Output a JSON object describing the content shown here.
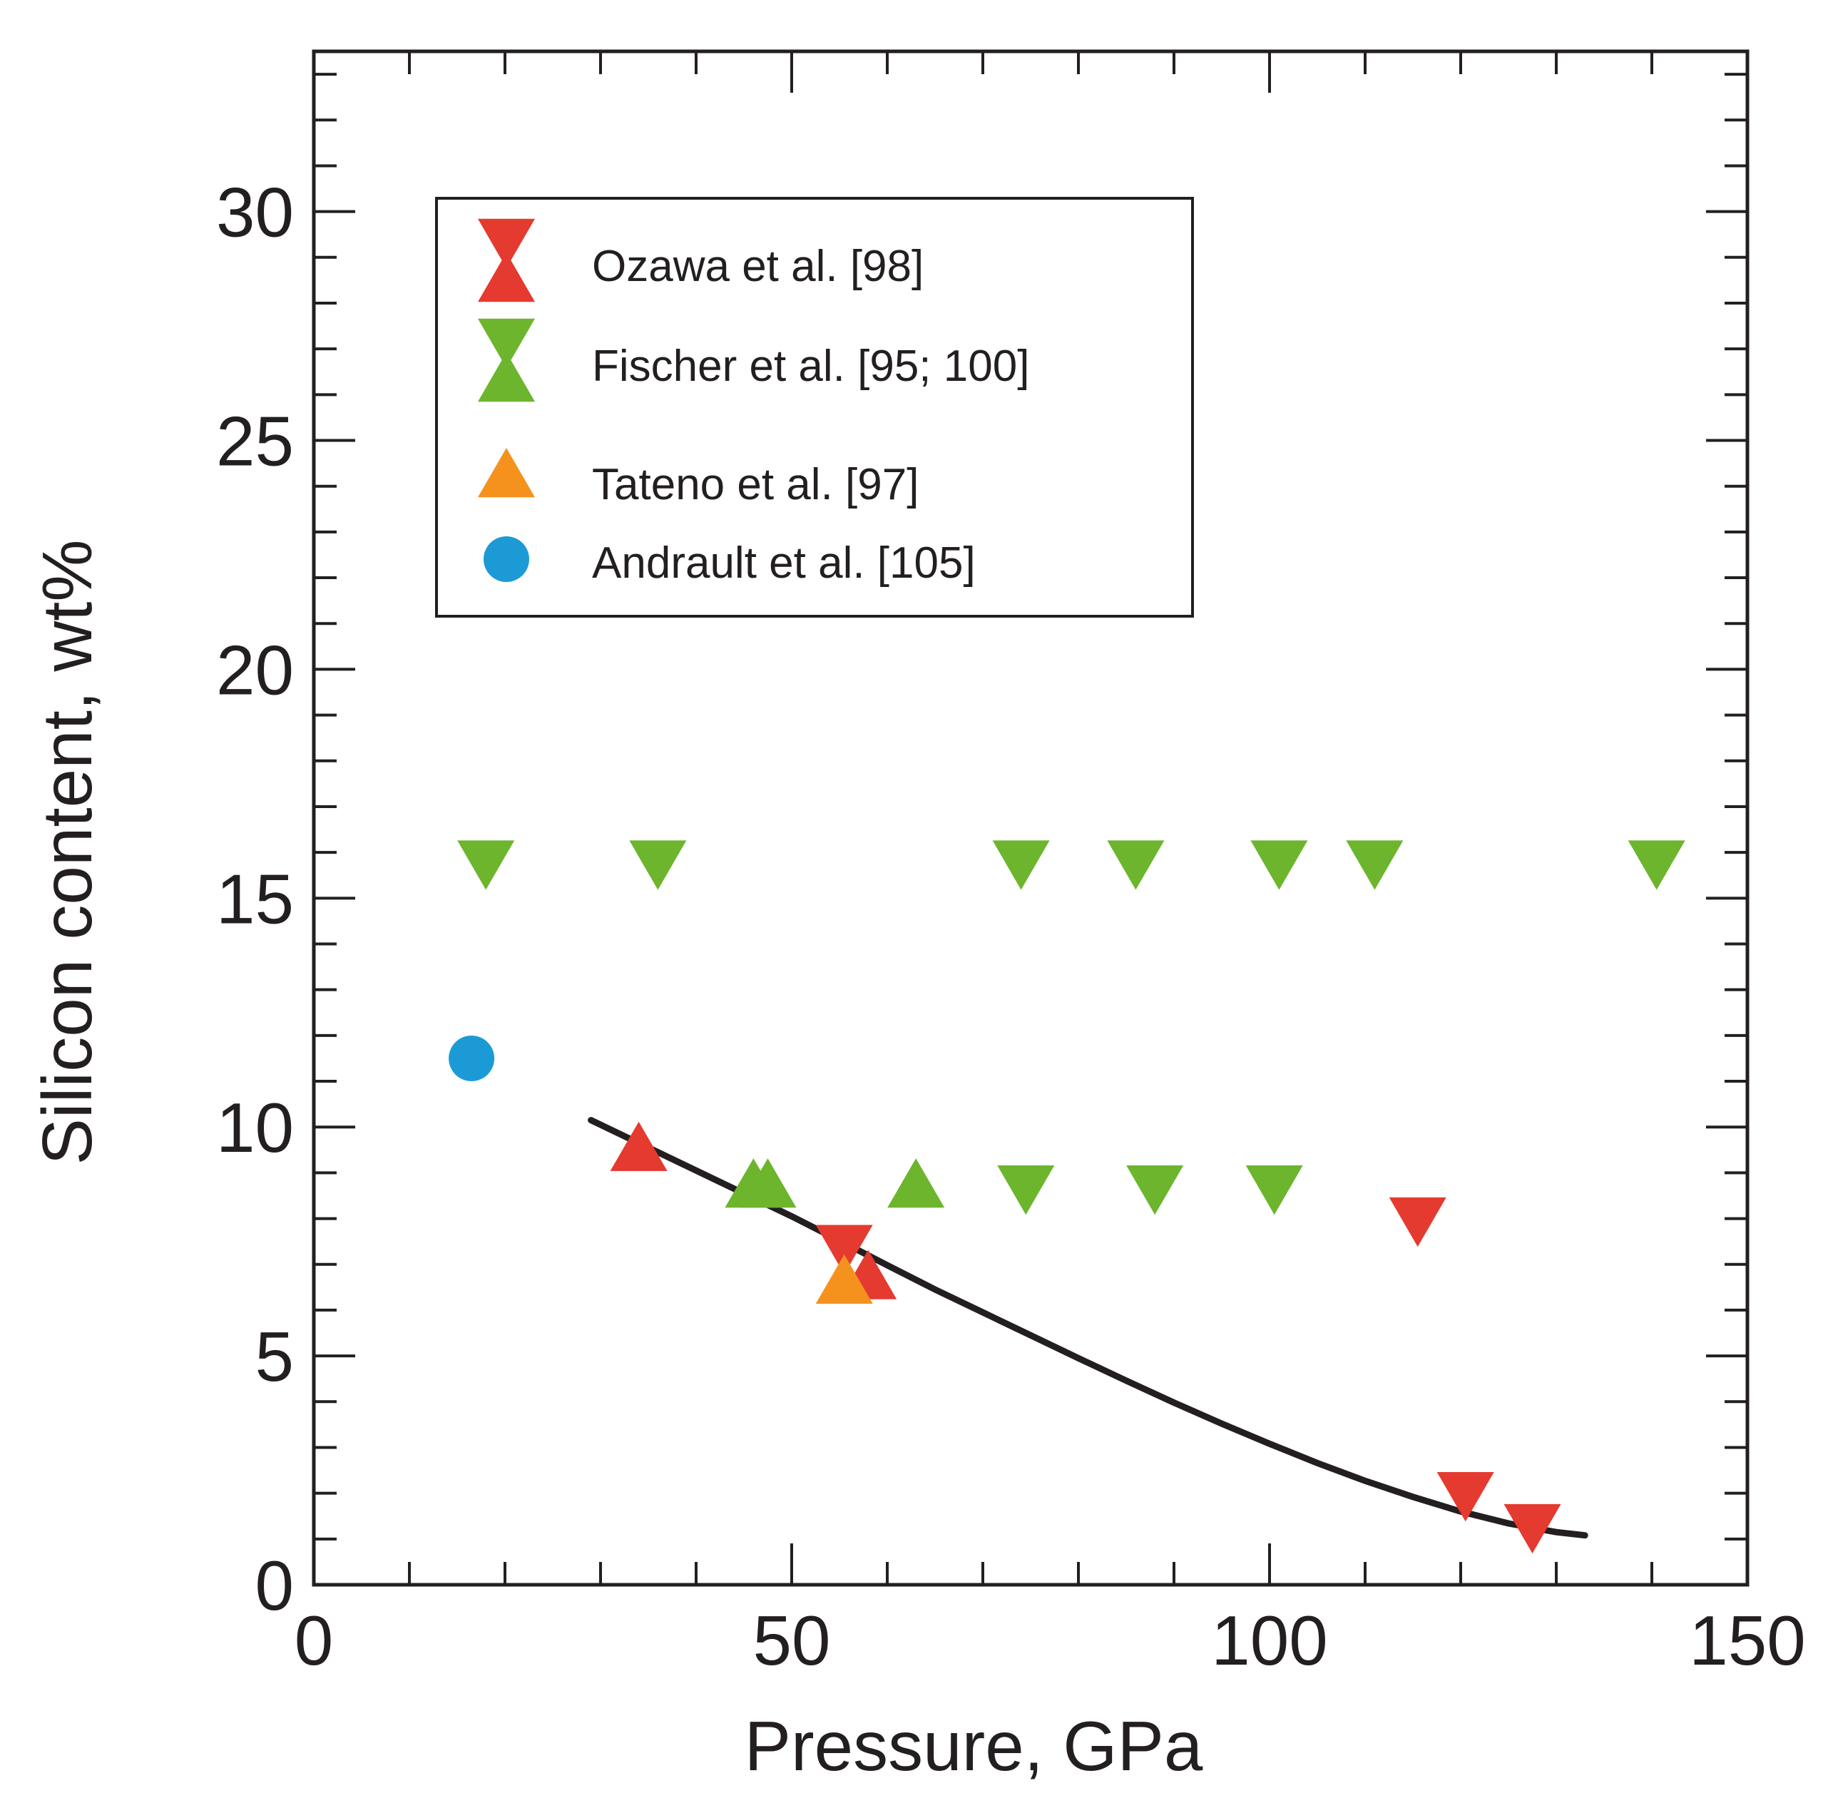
{
  "chart_data": {
    "type": "scatter",
    "title": "",
    "xlabel": "Pressure, GPa",
    "ylabel": "Silicon content, wt%",
    "xlim": [
      0,
      150
    ],
    "ylim": [
      0,
      33.5
    ],
    "xticks": [
      0,
      50,
      100,
      150
    ],
    "yticks": [
      0,
      5,
      10,
      15,
      20,
      25,
      30
    ],
    "x_minor_step": 10,
    "y_minor_step": 1,
    "grid": false,
    "legend_position": "top-left",
    "legend": [
      {
        "label": "Ozawa et al. [98]",
        "markers": [
          "triangle-down",
          "triangle-up"
        ],
        "color": "#e53a2f"
      },
      {
        "label": "Fischer et al. [95; 100]",
        "markers": [
          "triangle-down",
          "triangle-up"
        ],
        "color": "#6cb52d"
      },
      {
        "label": "Tateno et al. [97]",
        "markers": [
          "triangle-up"
        ],
        "color": "#f5921e"
      },
      {
        "label": "Andrault et al. [105]",
        "markers": [
          "circle"
        ],
        "color": "#1c9ad6"
      }
    ],
    "series": [
      {
        "name": "Ozawa et al. [98] (down)",
        "marker": "triangle-down",
        "color": "#e53a2f",
        "points": [
          [
            55.5,
            7.5
          ],
          [
            115.5,
            8.1
          ],
          [
            120.5,
            2.1
          ],
          [
            127.5,
            1.4
          ]
        ]
      },
      {
        "name": "Ozawa et al. [98] (up)",
        "marker": "triangle-up",
        "color": "#e53a2f",
        "points": [
          [
            34,
            9.4
          ],
          [
            58,
            6.6
          ]
        ]
      },
      {
        "name": "Fischer et al. [95; 100] (down)",
        "marker": "triangle-down",
        "color": "#6cb52d",
        "points": [
          [
            18,
            15.9
          ],
          [
            36,
            15.9
          ],
          [
            74,
            15.9
          ],
          [
            86,
            15.9
          ],
          [
            101,
            15.9
          ],
          [
            111,
            15.9
          ],
          [
            140.5,
            15.9
          ],
          [
            74.5,
            8.8
          ],
          [
            88,
            8.8
          ],
          [
            100.5,
            8.8
          ]
        ]
      },
      {
        "name": "Fischer et al. [95; 100] (up)",
        "marker": "triangle-up",
        "color": "#6cb52d",
        "points": [
          [
            46,
            8.6
          ],
          [
            47.5,
            8.6
          ],
          [
            63,
            8.6
          ]
        ]
      },
      {
        "name": "Tateno et al. [97]",
        "marker": "triangle-up",
        "color": "#f5921e",
        "points": [
          [
            55.5,
            6.5
          ]
        ]
      },
      {
        "name": "Andrault et al. [105]",
        "marker": "circle",
        "color": "#1c9ad6",
        "points": [
          [
            16.5,
            11.5
          ]
        ]
      }
    ],
    "fit_curve": {
      "type": "line",
      "color": "#231f20",
      "x": [
        29,
        35,
        40,
        45,
        50,
        55,
        60,
        65,
        70,
        75,
        80,
        85,
        90,
        95,
        100,
        105,
        110,
        115,
        120,
        125,
        130,
        133
      ],
      "y": [
        10.15,
        9.55,
        9.05,
        8.55,
        8.05,
        7.52,
        6.98,
        6.45,
        5.95,
        5.45,
        4.95,
        4.46,
        3.98,
        3.52,
        3.08,
        2.66,
        2.27,
        1.92,
        1.6,
        1.34,
        1.15,
        1.08
      ]
    }
  }
}
